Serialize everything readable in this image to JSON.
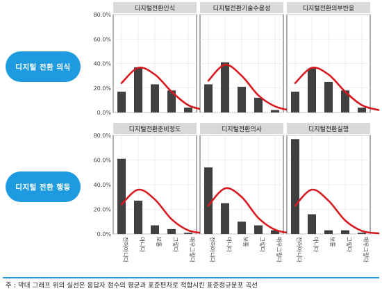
{
  "labels": {
    "group_awareness": "디지털 전환 의식",
    "group_behavior": "디지털 전환 행동"
  },
  "footnote": "주 : 막대 그래프 위의 실선은 응답자 점수의 평균과 표준편차로 적합시킨 표준정규분포 곡선",
  "colors": {
    "bar": "#404040",
    "curve": "#d71920",
    "accent": "#1e9be0",
    "strip": "#d9d9d9",
    "grid": "#e6e6e6"
  },
  "chart_data": [
    {
      "type": "bar",
      "title": "디지털전환인식",
      "categories": [
        "전혀아니다",
        "아니다",
        "보통",
        "그렇다",
        "매우그렇다"
      ],
      "values": [
        17,
        37,
        23,
        18,
        4
      ],
      "curve": [
        24,
        36.5,
        31,
        17,
        6,
        2
      ],
      "ylim": [
        0,
        80
      ],
      "yticks": [
        "0.0%",
        "20.0%",
        "40.0%",
        "60.0%",
        "80.0%"
      ]
    },
    {
      "type": "bar",
      "title": "디지털전환기술수용성",
      "categories": [
        "전혀아니다",
        "아니다",
        "보통",
        "그렇다",
        "매우그렇다"
      ],
      "values": [
        23,
        41,
        21,
        12,
        2
      ],
      "curve": [
        26,
        39,
        30,
        14,
        5,
        1.5
      ],
      "ylim": [
        0,
        80
      ],
      "yticks": [
        "0.0%",
        "20.0%",
        "40.0%",
        "60.0%",
        "80.0%"
      ]
    },
    {
      "type": "bar",
      "title": "디지털전환의부반응",
      "categories": [
        "전혀아니다",
        "아니다",
        "보통",
        "그렇다",
        "매우그렇다"
      ],
      "values": [
        17,
        36,
        25,
        18,
        4
      ],
      "curve": [
        24,
        36.5,
        31,
        17,
        6,
        2
      ],
      "ylim": [
        0,
        80
      ],
      "yticks": [
        "0.0%",
        "20.0%",
        "40.0%",
        "60.0%",
        "80.0%"
      ]
    },
    {
      "type": "bar",
      "title": "디지털전환준비정도",
      "categories": [
        "전혀아니다",
        "아니다",
        "보통",
        "그렇다",
        "매우그렇다"
      ],
      "values": [
        61,
        27,
        7,
        4,
        1
      ],
      "curve": [
        24,
        36,
        28,
        12,
        3,
        0.5
      ],
      "ylim": [
        0,
        80
      ],
      "yticks": [
        "0.0%",
        "20.0%",
        "40.0%",
        "60.0%",
        "80.0%"
      ]
    },
    {
      "type": "bar",
      "title": "디지털전환의사",
      "categories": [
        "전혀아니다",
        "아니다",
        "보통",
        "그렇다",
        "매우그렇다"
      ],
      "values": [
        54,
        25,
        10,
        7,
        3
      ],
      "curve": [
        23,
        37,
        30,
        13,
        3.5,
        0.5
      ],
      "ylim": [
        0,
        80
      ],
      "yticks": [
        "0.0%",
        "20.0%",
        "40.0%",
        "60.0%",
        "80.0%"
      ]
    },
    {
      "type": "bar",
      "title": "디지털전환실행",
      "categories": [
        "전혀아니다",
        "아니다",
        "보통",
        "그렇다",
        "매우그렇다"
      ],
      "values": [
        77,
        16,
        3,
        3,
        1
      ],
      "curve": [
        23,
        36,
        27,
        11,
        2.5,
        0.5
      ],
      "ylim": [
        0,
        80
      ],
      "yticks": [
        "0.0%",
        "20.0%",
        "40.0%",
        "60.0%",
        "80.0%"
      ]
    }
  ]
}
